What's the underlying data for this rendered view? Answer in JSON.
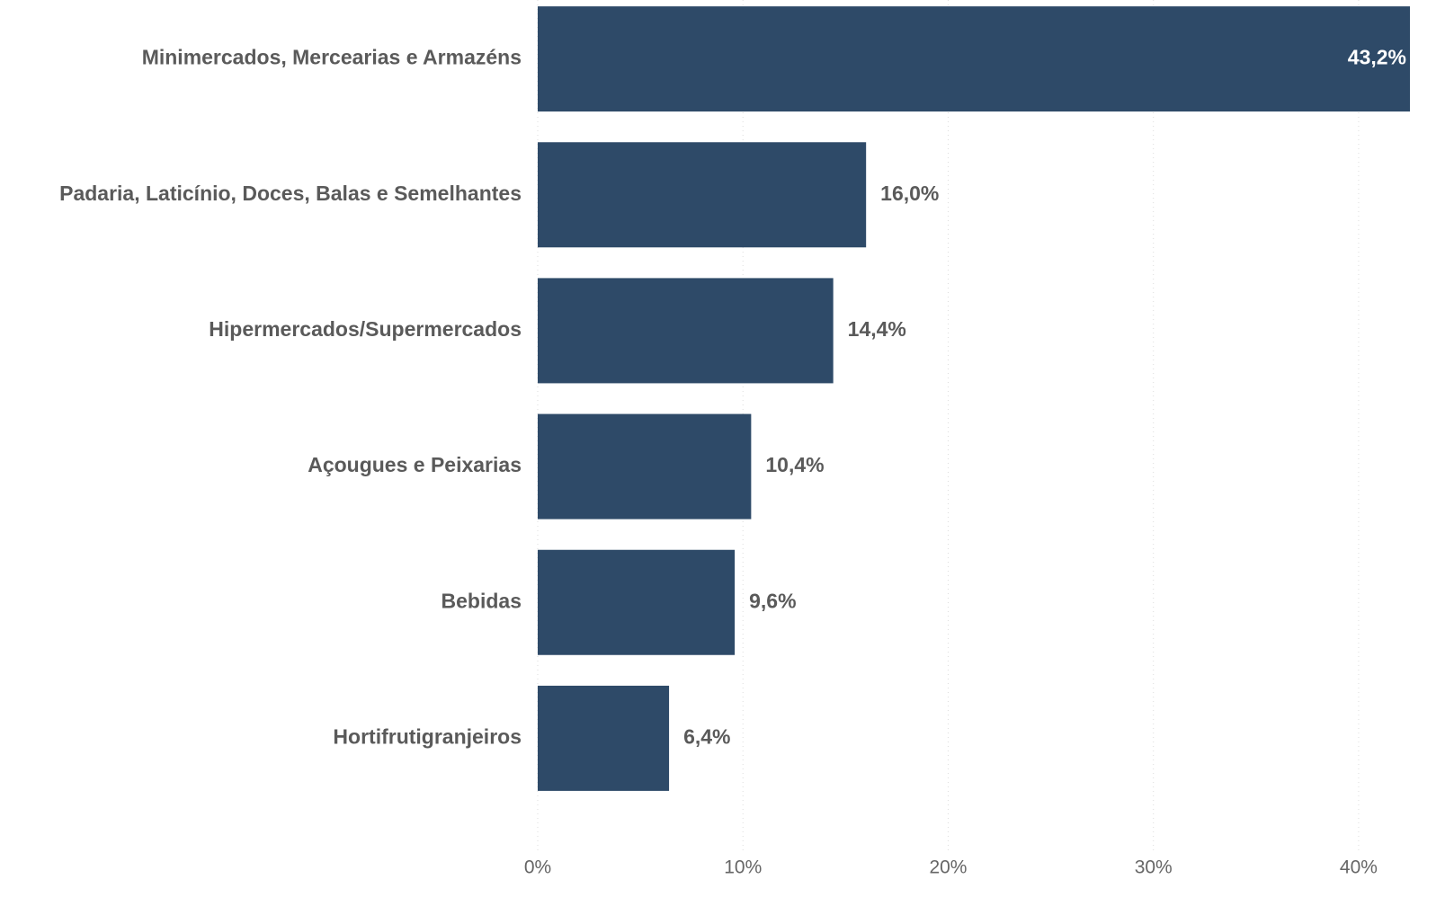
{
  "chart_data": {
    "type": "barh",
    "categories": [
      "Minimercados, Mercearias e Armazéns",
      "Padaria, Laticínio, Doces, Balas e Semelhantes",
      "Hipermercados/Supermercados",
      "Açougues e Peixarias",
      "Bebidas",
      "Hortifrutigranjeiros"
    ],
    "values": [
      43.2,
      16.0,
      14.4,
      10.4,
      9.6,
      6.4
    ],
    "value_labels": [
      "43,2%",
      "16,0%",
      "14,4%",
      "10,4%",
      "9,6%",
      "6,4%"
    ],
    "color": "#2e4a68",
    "xlim": [
      0,
      42.5
    ],
    "xticks": [
      {
        "value": 0,
        "label": "0%"
      },
      {
        "value": 10,
        "label": "10%"
      },
      {
        "value": 20,
        "label": "20%"
      },
      {
        "value": 30,
        "label": "30%"
      },
      {
        "value": 40,
        "label": "40%"
      }
    ],
    "grid": true
  }
}
